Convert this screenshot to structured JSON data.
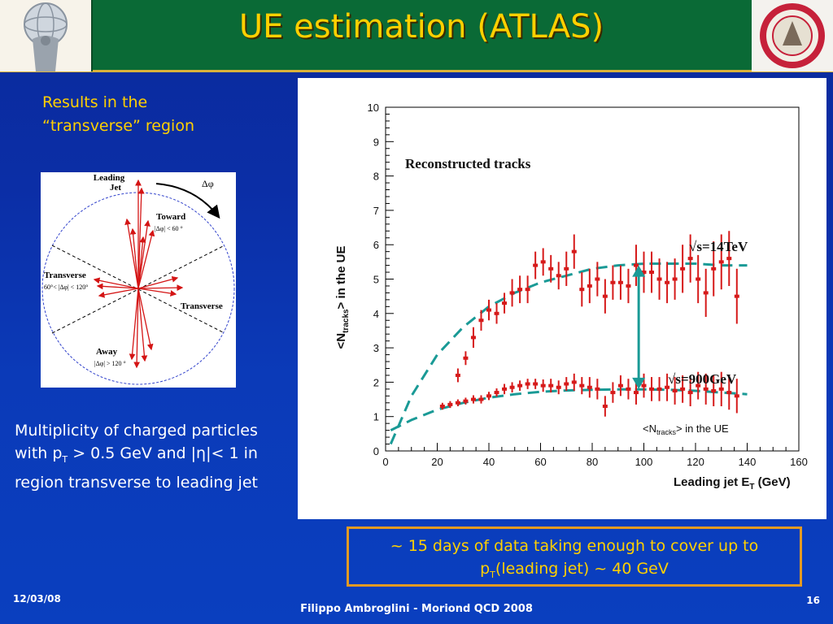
{
  "header": {
    "title": "UE estimation (ATLAS)",
    "colors": {
      "bar": "#0a6a36",
      "title": "#ffd000",
      "accent": "#d9b23a"
    }
  },
  "logos": {
    "left": "atlas-logo",
    "right": "university-seal"
  },
  "left_note": {
    "line1": "Results in the",
    "line2": "“transverse” region"
  },
  "diagram": {
    "leading_jet_line1": "Leading",
    "leading_jet_line2": "Jet",
    "delta_phi": "Δφ",
    "toward": "Toward",
    "toward_cut": "|Δφ| < 60 °",
    "transverse_left": "Transverse",
    "transverse_left_cut": "60°< |Δφ| < 120°",
    "transverse_right": "Transverse",
    "away": "Away",
    "away_cut": "|Δφ| > 120 °"
  },
  "multiplicity": {
    "line1": "Multiplicity of charged particles",
    "line2_a": "with p",
    "line2_sub": "T",
    "line2_b": " > 0.5 GeV and |η|< 1 in",
    "line3": "region transverse to leading jet"
  },
  "callout": {
    "line1": "~ 15 days of data taking enough to cover up to",
    "line2_a": "p",
    "line2_sub": "T",
    "line2_b": "(leading jet) ~ 40 GeV"
  },
  "footer": {
    "date": "12/03/08",
    "author": "Filippo Ambroglini - Moriond QCD 2008",
    "page": "16"
  },
  "chart_data": {
    "type": "scatter",
    "title": "Reconstructed tracks",
    "xlabel_main": "Leading jet E",
    "xlabel_sub": "T",
    "xlabel_unit": " (GeV)",
    "ylabel_a": "<N",
    "ylabel_sub": "tracks",
    "ylabel_b": "> in the UE",
    "xlim": [
      0,
      160
    ],
    "ylim": [
      0,
      10
    ],
    "xticks": [
      "0",
      "20",
      "40",
      "60",
      "80",
      "100",
      "120",
      "140",
      "160"
    ],
    "yticks": [
      "0",
      "1",
      "2",
      "3",
      "4",
      "5",
      "6",
      "7",
      "8",
      "9",
      "10"
    ],
    "legend_text_a": "<N",
    "legend_sub": "tracks",
    "legend_text_b": "> in the UE",
    "label_14tev": "√s=14TeV",
    "label_900gev": "√s=900GeV",
    "series": [
      {
        "name": "√s=14TeV",
        "color": "#d61a1a",
        "x": [
          28,
          31,
          34,
          37,
          40,
          43,
          46,
          49,
          52,
          55,
          58,
          61,
          64,
          67,
          70,
          73,
          76,
          79,
          82,
          85,
          88,
          91,
          94,
          97,
          100,
          103,
          106,
          109,
          112,
          115,
          118,
          121,
          124,
          127,
          130,
          133,
          136
        ],
        "y": [
          2.2,
          2.7,
          3.3,
          3.8,
          4.1,
          4.0,
          4.3,
          4.6,
          4.7,
          4.7,
          5.4,
          5.5,
          5.3,
          5.1,
          5.3,
          5.8,
          4.7,
          4.8,
          5.0,
          4.5,
          4.9,
          4.9,
          4.8,
          5.4,
          5.2,
          5.2,
          5.0,
          4.9,
          5.0,
          5.3,
          5.6,
          5.0,
          4.6,
          5.3,
          5.5,
          5.6,
          4.5
        ],
        "err": [
          0.2,
          0.2,
          0.3,
          0.3,
          0.3,
          0.3,
          0.3,
          0.4,
          0.4,
          0.4,
          0.4,
          0.4,
          0.4,
          0.4,
          0.5,
          0.5,
          0.5,
          0.5,
          0.5,
          0.5,
          0.5,
          0.5,
          0.5,
          0.6,
          0.6,
          0.6,
          0.6,
          0.6,
          0.6,
          0.7,
          0.7,
          0.7,
          0.7,
          0.8,
          0.8,
          0.8,
          0.8
        ]
      },
      {
        "name": "√s=900GeV",
        "color": "#d61a1a",
        "x": [
          22,
          25,
          28,
          31,
          34,
          37,
          40,
          43,
          46,
          49,
          52,
          55,
          58,
          61,
          64,
          67,
          70,
          73,
          76,
          79,
          82,
          85,
          88,
          91,
          94,
          97,
          100,
          103,
          106,
          109,
          112,
          115,
          118,
          121,
          124,
          127,
          130,
          133,
          136
        ],
        "y": [
          1.3,
          1.35,
          1.4,
          1.45,
          1.5,
          1.5,
          1.6,
          1.7,
          1.8,
          1.85,
          1.9,
          1.95,
          1.95,
          1.9,
          1.9,
          1.85,
          1.95,
          2.0,
          1.9,
          1.85,
          1.8,
          1.3,
          1.7,
          1.9,
          1.8,
          1.7,
          1.9,
          1.8,
          1.8,
          1.85,
          1.75,
          1.8,
          1.7,
          1.9,
          1.8,
          1.75,
          1.8,
          1.7,
          1.6
        ],
        "err": [
          0.1,
          0.1,
          0.1,
          0.1,
          0.12,
          0.12,
          0.12,
          0.12,
          0.15,
          0.15,
          0.15,
          0.15,
          0.15,
          0.18,
          0.2,
          0.2,
          0.2,
          0.25,
          0.25,
          0.3,
          0.3,
          0.3,
          0.3,
          0.3,
          0.3,
          0.35,
          0.35,
          0.35,
          0.35,
          0.4,
          0.4,
          0.4,
          0.4,
          0.4,
          0.45,
          0.45,
          0.5,
          0.5,
          0.5
        ]
      }
    ],
    "fits": [
      {
        "name": "fit-14tev",
        "color": "#1a9a96",
        "x": [
          2,
          10,
          20,
          30,
          40,
          50,
          60,
          70,
          80,
          90,
          100,
          110,
          120,
          130,
          140
        ],
        "y": [
          0.2,
          1.6,
          2.8,
          3.6,
          4.2,
          4.6,
          4.9,
          5.1,
          5.3,
          5.4,
          5.45,
          5.45,
          5.45,
          5.4,
          5.4
        ]
      },
      {
        "name": "fit-900gev",
        "color": "#1a9a96",
        "x": [
          2,
          10,
          20,
          30,
          40,
          50,
          60,
          70,
          80,
          90,
          100,
          110,
          120,
          130,
          140
        ],
        "y": [
          0.6,
          0.9,
          1.2,
          1.4,
          1.55,
          1.65,
          1.72,
          1.76,
          1.78,
          1.79,
          1.79,
          1.78,
          1.75,
          1.7,
          1.65
        ]
      }
    ],
    "arrow": {
      "x": 98,
      "y_top": 5.4,
      "y_bottom": 1.8,
      "color": "#1a9a96"
    }
  }
}
